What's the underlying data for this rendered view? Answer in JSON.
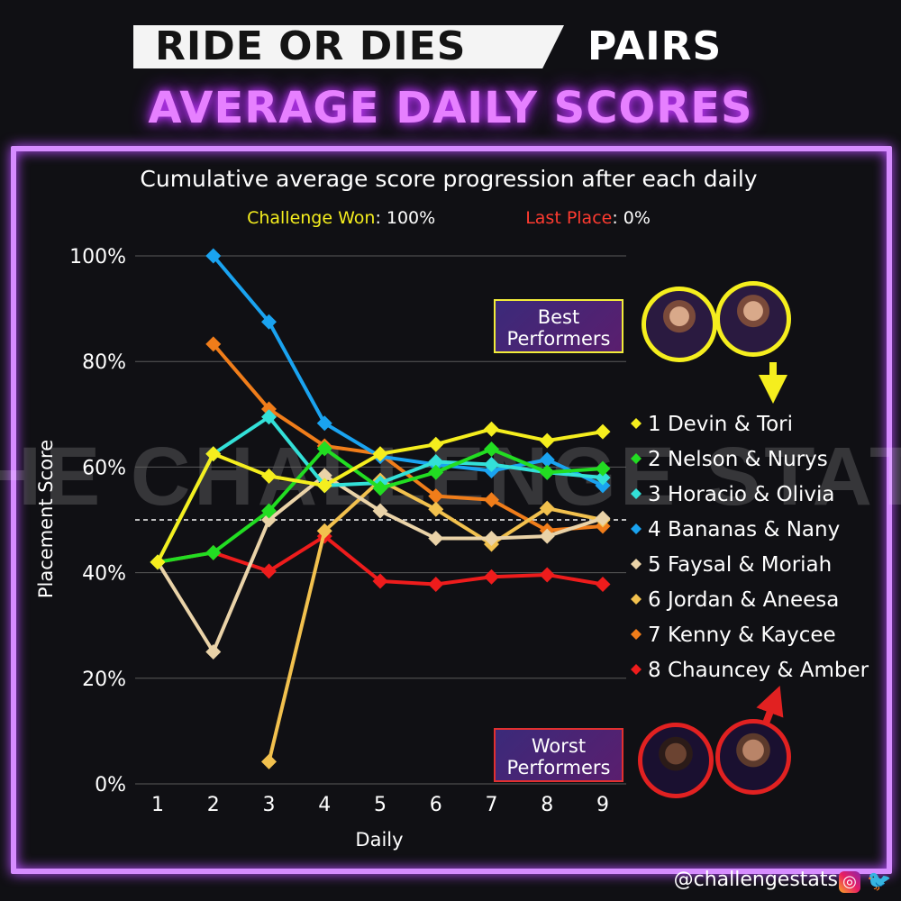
{
  "header": {
    "title_dark": "RIDE OR DIES",
    "title_light": "PAIRS",
    "title_main": "AVERAGE DAILY SCORES"
  },
  "callouts": {
    "best": "Best Performers",
    "worst": "Worst Performers"
  },
  "footer": {
    "handle": "@challengestats",
    "icons": [
      "instagram-icon",
      "twitter-icon"
    ]
  },
  "watermark": "THE CHALLENGE STATS",
  "chart_data": {
    "type": "line",
    "title": "Cumulative average score progression after each daily",
    "legend_note": {
      "won_label": "Challenge Won",
      "won_value": ": 100%",
      "won_color": "#f5ee1e",
      "last_label": "Last Place",
      "last_value": ": 0%",
      "last_color": "#ff3b30"
    },
    "xlabel": "Daily",
    "ylabel": "Placement Score",
    "x": [
      1,
      2,
      3,
      4,
      5,
      6,
      7,
      8,
      9
    ],
    "ylim": [
      0,
      100
    ],
    "yticks": [
      "0%",
      "20%",
      "40%",
      "60%",
      "80%",
      "100%"
    ],
    "reference_line": 50,
    "legend_position": "right",
    "series": [
      {
        "name": "1 Devin & Tori",
        "color": "#f5ee1e",
        "values": [
          42,
          62.5,
          58.3,
          56.5,
          62.5,
          64.3,
          67.2,
          65,
          66.7
        ]
      },
      {
        "name": "2 Nelson & Nurys",
        "color": "#22dd22",
        "values": [
          42,
          43.8,
          51.7,
          63.5,
          56,
          59,
          63.4,
          59,
          59.7
        ]
      },
      {
        "name": "3 Horacio & Olivia",
        "color": "#33e0d8",
        "values": [
          42,
          62.5,
          69.5,
          56.5,
          57,
          61,
          60.5,
          59,
          58
        ]
      },
      {
        "name": "4 Bananas & Nany",
        "color": "#1aa3f0",
        "values": [
          null,
          100,
          87.5,
          68.3,
          62,
          60.5,
          59.3,
          61.4,
          56.5
        ]
      },
      {
        "name": "5 Faysal & Moriah",
        "color": "#ead3a8",
        "values": [
          42,
          25,
          50,
          58.4,
          51.7,
          46.5,
          46.5,
          46.9,
          50.3
        ]
      },
      {
        "name": "6 Jordan & Aneesa",
        "color": "#f2c14e",
        "values": [
          null,
          null,
          4.2,
          47.9,
          57.5,
          52,
          45.4,
          52.2,
          50
        ]
      },
      {
        "name": "7 Kenny & Kaycee",
        "color": "#f07d1a",
        "values": [
          null,
          83.3,
          71,
          64,
          62.5,
          54.5,
          53.8,
          48,
          48.8
        ]
      },
      {
        "name": "8 Chauncey & Amber",
        "color": "#ee1c1c",
        "values": [
          42,
          43.8,
          40.3,
          46.9,
          38.4,
          37.8,
          39.2,
          39.6,
          37.8
        ]
      }
    ]
  }
}
